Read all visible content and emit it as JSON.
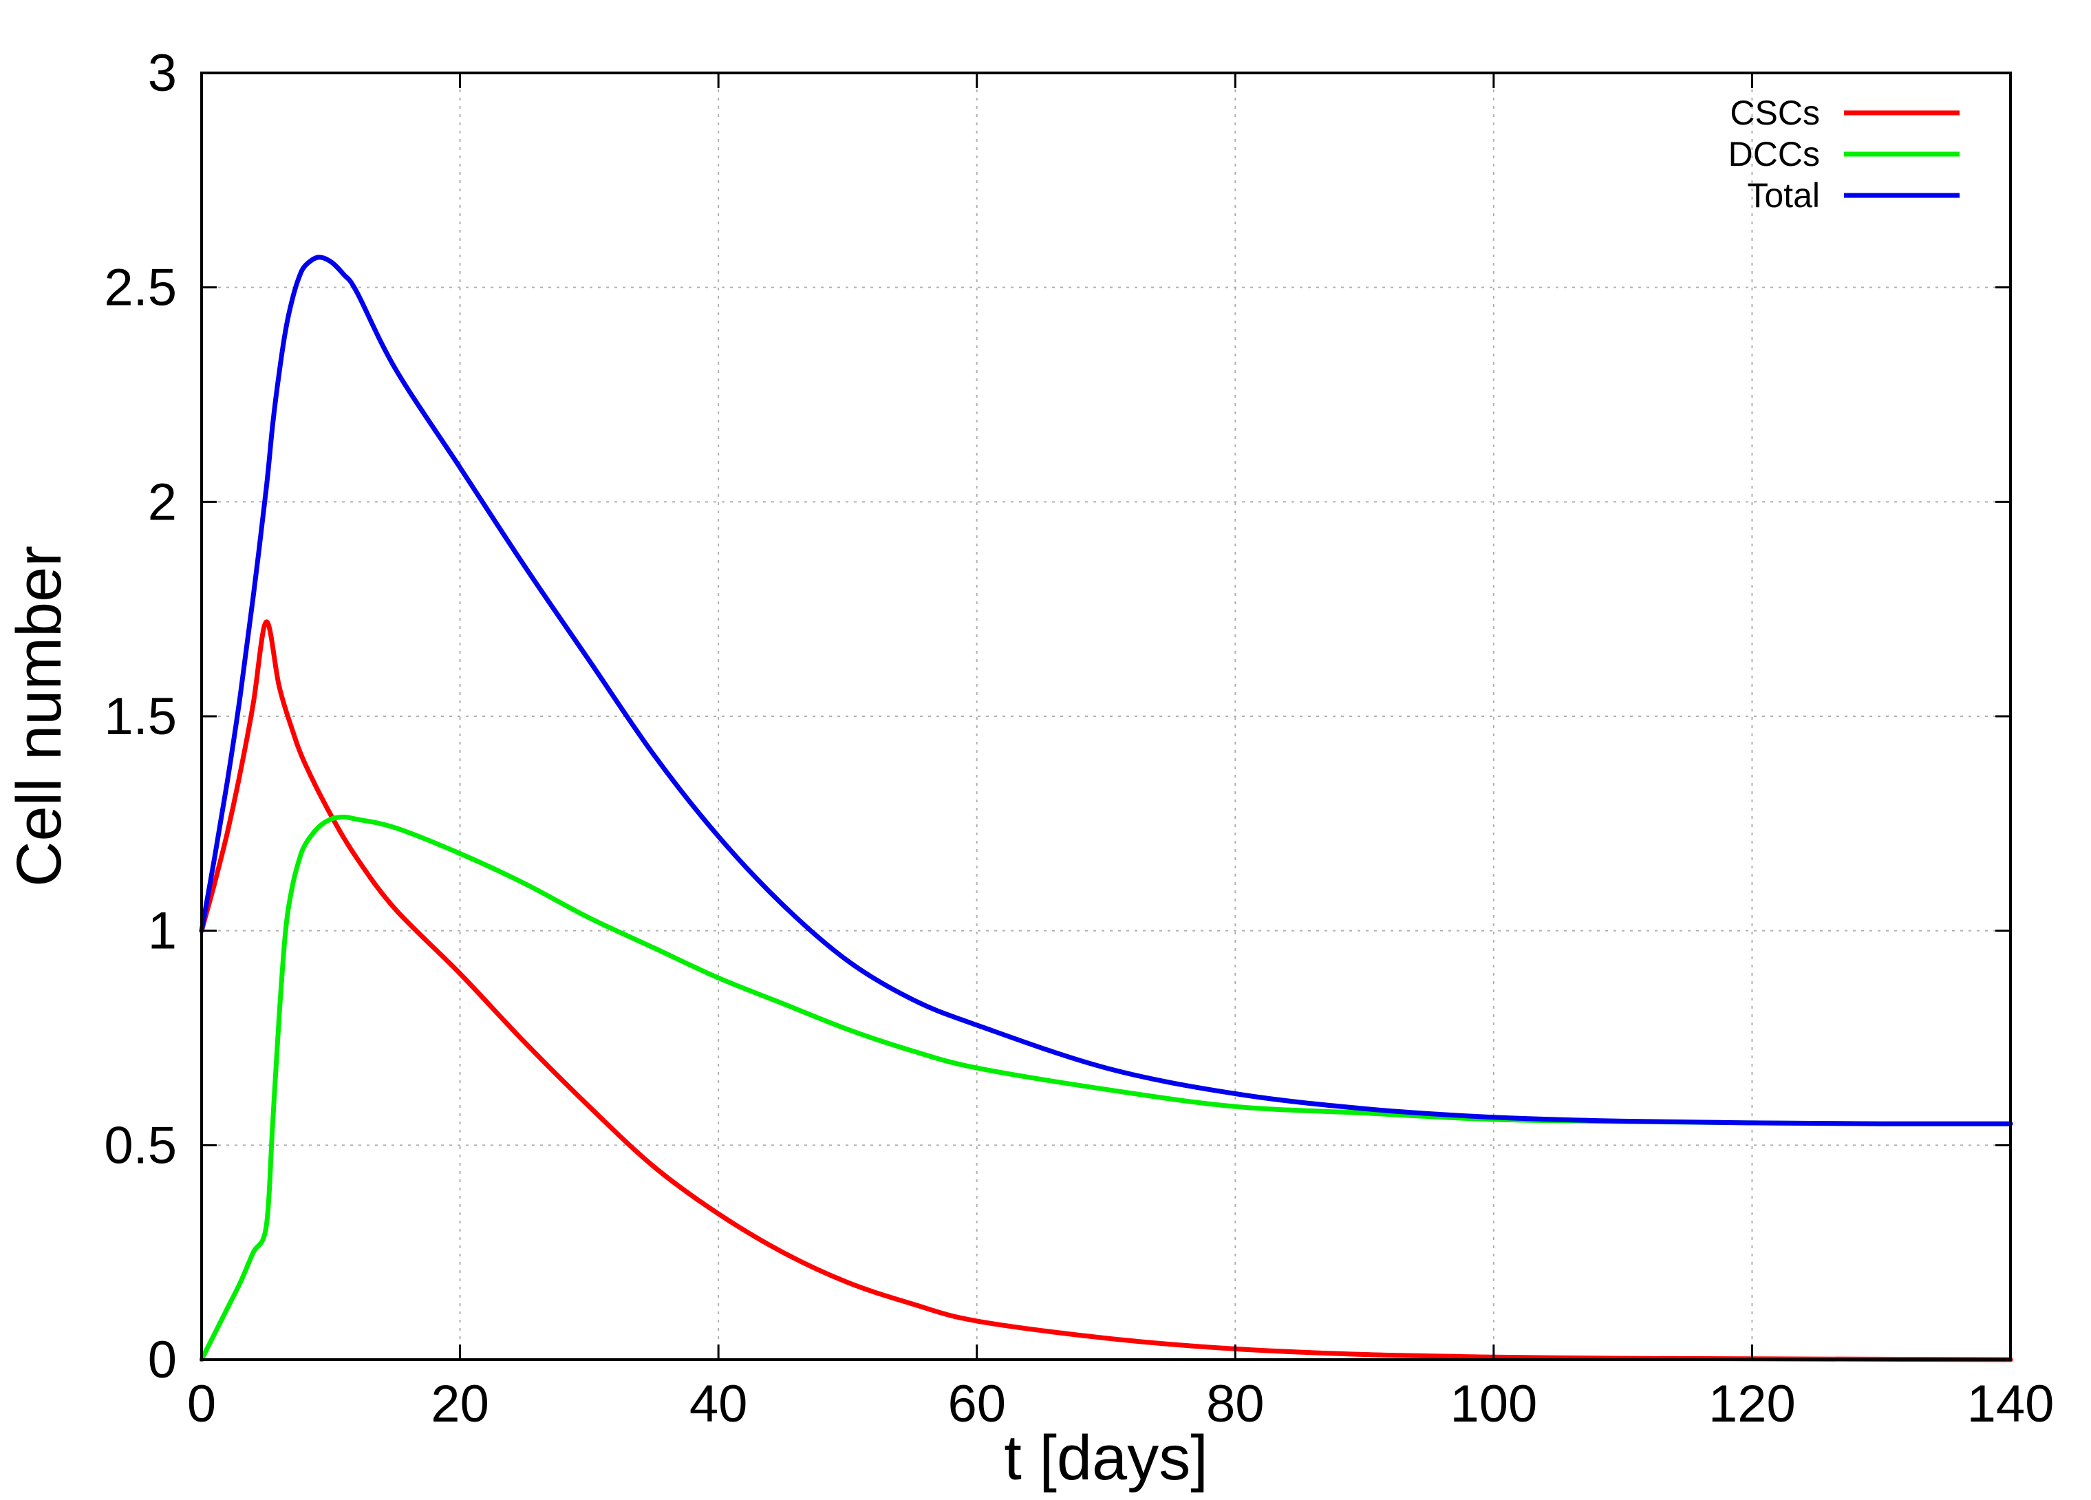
{
  "chart_data": {
    "type": "line",
    "title": "",
    "xlabel": "t [days]",
    "ylabel": "Cell number",
    "xlim": [
      0,
      140
    ],
    "ylim": [
      0,
      3
    ],
    "xticks": [
      0,
      20,
      40,
      60,
      80,
      100,
      120,
      140
    ],
    "yticks": [
      0,
      0.5,
      1,
      1.5,
      2,
      2.5,
      3
    ],
    "xtick_labels": [
      "0",
      "20",
      "40",
      "60",
      "80",
      "100",
      "120",
      "140"
    ],
    "ytick_labels": [
      "0",
      "0.5",
      "1",
      "1.5",
      "2",
      "2.5",
      "3"
    ],
    "grid": true,
    "legend_position": "top-right",
    "series": [
      {
        "name": "CSCs",
        "color": "#ff0000",
        "x": [
          0,
          1,
          2,
          3,
          4,
          5,
          6,
          7,
          8,
          10,
          12,
          15,
          20,
          25,
          30,
          35,
          40,
          45,
          50,
          55,
          60,
          70,
          80,
          90,
          100,
          110,
          120,
          130,
          140
        ],
        "y": [
          1.0,
          1.11,
          1.23,
          1.37,
          1.53,
          1.72,
          1.57,
          1.47,
          1.39,
          1.27,
          1.17,
          1.05,
          0.9,
          0.74,
          0.59,
          0.45,
          0.34,
          0.25,
          0.18,
          0.13,
          0.09,
          0.05,
          0.025,
          0.012,
          0.006,
          0.003,
          0.002,
          0.001,
          0.0
        ]
      },
      {
        "name": "DCCs",
        "color": "#00ee00",
        "x": [
          0,
          1,
          2,
          3,
          4,
          5,
          5.5,
          6,
          6.5,
          7,
          7.5,
          8,
          9,
          10,
          11,
          12,
          15,
          20,
          25,
          30,
          35,
          40,
          45,
          50,
          55,
          60,
          70,
          80,
          90,
          100,
          110,
          120,
          130,
          140
        ],
        "y": [
          0.0,
          0.06,
          0.12,
          0.18,
          0.25,
          0.31,
          0.55,
          0.8,
          1.0,
          1.1,
          1.16,
          1.2,
          1.24,
          1.26,
          1.265,
          1.26,
          1.24,
          1.18,
          1.11,
          1.03,
          0.96,
          0.89,
          0.83,
          0.77,
          0.72,
          0.68,
          0.63,
          0.59,
          0.575,
          0.56,
          0.555,
          0.552,
          0.55,
          0.55
        ]
      },
      {
        "name": "Total",
        "color": "#0000ee",
        "x": [
          0,
          1,
          2,
          3,
          4,
          5,
          5.5,
          6,
          6.5,
          7,
          7.5,
          8,
          9,
          10,
          11,
          12,
          15,
          20,
          25,
          30,
          35,
          40,
          45,
          50,
          55,
          60,
          70,
          80,
          90,
          100,
          110,
          120,
          130,
          140
        ],
        "y": [
          1.0,
          1.17,
          1.35,
          1.55,
          1.78,
          2.03,
          2.18,
          2.3,
          2.4,
          2.47,
          2.52,
          2.55,
          2.57,
          2.56,
          2.53,
          2.49,
          2.31,
          2.08,
          1.85,
          1.63,
          1.41,
          1.22,
          1.06,
          0.93,
          0.84,
          0.78,
          0.68,
          0.62,
          0.585,
          0.565,
          0.556,
          0.552,
          0.55,
          0.55
        ]
      }
    ]
  }
}
